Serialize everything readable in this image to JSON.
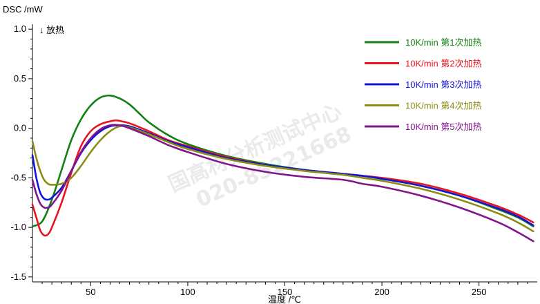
{
  "chart_data": {
    "type": "line",
    "title": "",
    "ylabel": "DSC /mW",
    "xlabel": "温度 /℃",
    "annotation": "↓ 放热",
    "xlim": [
      20,
      280
    ],
    "ylim": [
      -1.55,
      1.05
    ],
    "x_ticks": [
      50,
      100,
      150,
      200,
      250
    ],
    "y_ticks": [
      1.0,
      0.5,
      0.0,
      -0.5,
      -1.0,
      -1.5
    ],
    "y_tick_labels": [
      "1.0",
      "0.5",
      "0.0",
      "-0.5",
      "-1.0",
      "-1.5"
    ],
    "legend_position": "top-right",
    "watermark": [
      "国高材分析测试中心",
      "020-85221668"
    ],
    "series": [
      {
        "name": "10K/min 第1次加热",
        "color": "#128012",
        "points": [
          [
            20,
            -0.99
          ],
          [
            25,
            -0.94
          ],
          [
            30,
            -0.72
          ],
          [
            35,
            -0.42
          ],
          [
            40,
            -0.12
          ],
          [
            45,
            0.09
          ],
          [
            50,
            0.23
          ],
          [
            55,
            0.31
          ],
          [
            60,
            0.33
          ],
          [
            65,
            0.3
          ],
          [
            70,
            0.24
          ],
          [
            75,
            0.15
          ],
          [
            80,
            0.06
          ],
          [
            90,
            -0.07
          ],
          [
            100,
            -0.16
          ],
          [
            120,
            -0.28
          ],
          [
            140,
            -0.36
          ],
          [
            160,
            -0.42
          ],
          [
            180,
            -0.46
          ],
          [
            190,
            -0.48
          ],
          [
            200,
            -0.51
          ],
          [
            220,
            -0.58
          ],
          [
            240,
            -0.68
          ],
          [
            260,
            -0.82
          ],
          [
            270,
            -0.9
          ],
          [
            278,
            -0.99
          ]
        ]
      },
      {
        "name": "10K/min 第2次加热",
        "color": "#e8141e",
        "points": [
          [
            20,
            -0.77
          ],
          [
            22,
            -0.9
          ],
          [
            24,
            -1.03
          ],
          [
            26,
            -1.08
          ],
          [
            28,
            -1.07
          ],
          [
            30,
            -1.0
          ],
          [
            35,
            -0.75
          ],
          [
            40,
            -0.45
          ],
          [
            45,
            -0.18
          ],
          [
            50,
            -0.03
          ],
          [
            55,
            0.04
          ],
          [
            60,
            0.07
          ],
          [
            63,
            0.08
          ],
          [
            66,
            0.07
          ],
          [
            70,
            0.05
          ],
          [
            80,
            -0.03
          ],
          [
            90,
            -0.12
          ],
          [
            100,
            -0.18
          ],
          [
            120,
            -0.29
          ],
          [
            140,
            -0.37
          ],
          [
            160,
            -0.43
          ],
          [
            180,
            -0.46
          ],
          [
            190,
            -0.48
          ],
          [
            200,
            -0.5
          ],
          [
            220,
            -0.56
          ],
          [
            240,
            -0.66
          ],
          [
            260,
            -0.79
          ],
          [
            270,
            -0.87
          ],
          [
            278,
            -0.95
          ]
        ]
      },
      {
        "name": "10K/min 第3次加热",
        "color": "#1414d2",
        "points": [
          [
            20,
            -0.27
          ],
          [
            22,
            -0.5
          ],
          [
            24,
            -0.65
          ],
          [
            26,
            -0.71
          ],
          [
            28,
            -0.72
          ],
          [
            30,
            -0.7
          ],
          [
            35,
            -0.6
          ],
          [
            40,
            -0.43
          ],
          [
            45,
            -0.25
          ],
          [
            50,
            -0.12
          ],
          [
            55,
            -0.03
          ],
          [
            60,
            0.02
          ],
          [
            65,
            0.03
          ],
          [
            70,
            0.02
          ],
          [
            80,
            -0.05
          ],
          [
            90,
            -0.13
          ],
          [
            100,
            -0.19
          ],
          [
            120,
            -0.3
          ],
          [
            140,
            -0.37
          ],
          [
            160,
            -0.42
          ],
          [
            180,
            -0.46
          ],
          [
            190,
            -0.48
          ],
          [
            200,
            -0.51
          ],
          [
            220,
            -0.58
          ],
          [
            240,
            -0.68
          ],
          [
            260,
            -0.81
          ],
          [
            270,
            -0.89
          ],
          [
            278,
            -0.98
          ]
        ]
      },
      {
        "name": "10K/min 第4次加热",
        "color": "#8c8c14",
        "points": [
          [
            20,
            -0.13
          ],
          [
            22,
            -0.3
          ],
          [
            24,
            -0.43
          ],
          [
            26,
            -0.52
          ],
          [
            28,
            -0.56
          ],
          [
            30,
            -0.57
          ],
          [
            35,
            -0.56
          ],
          [
            40,
            -0.5
          ],
          [
            45,
            -0.38
          ],
          [
            50,
            -0.24
          ],
          [
            55,
            -0.12
          ],
          [
            60,
            -0.03
          ],
          [
            65,
            0.02
          ],
          [
            70,
            0.01
          ],
          [
            80,
            -0.06
          ],
          [
            90,
            -0.14
          ],
          [
            100,
            -0.21
          ],
          [
            120,
            -0.31
          ],
          [
            140,
            -0.38
          ],
          [
            160,
            -0.43
          ],
          [
            180,
            -0.47
          ],
          [
            190,
            -0.5
          ],
          [
            200,
            -0.53
          ],
          [
            220,
            -0.61
          ],
          [
            240,
            -0.72
          ],
          [
            260,
            -0.86
          ],
          [
            270,
            -0.95
          ],
          [
            278,
            -1.04
          ]
        ]
      },
      {
        "name": "10K/min 第5次加热",
        "color": "#82148c",
        "points": [
          [
            20,
            -0.52
          ],
          [
            22,
            -0.66
          ],
          [
            24,
            -0.76
          ],
          [
            26,
            -0.8
          ],
          [
            28,
            -0.8
          ],
          [
            30,
            -0.77
          ],
          [
            35,
            -0.63
          ],
          [
            40,
            -0.43
          ],
          [
            45,
            -0.24
          ],
          [
            50,
            -0.1
          ],
          [
            55,
            -0.01
          ],
          [
            60,
            0.03
          ],
          [
            65,
            0.03
          ],
          [
            70,
            0.0
          ],
          [
            80,
            -0.08
          ],
          [
            90,
            -0.17
          ],
          [
            100,
            -0.24
          ],
          [
            120,
            -0.36
          ],
          [
            140,
            -0.44
          ],
          [
            160,
            -0.49
          ],
          [
            180,
            -0.52
          ],
          [
            190,
            -0.56
          ],
          [
            200,
            -0.59
          ],
          [
            220,
            -0.68
          ],
          [
            240,
            -0.8
          ],
          [
            260,
            -0.95
          ],
          [
            270,
            -1.05
          ],
          [
            278,
            -1.14
          ]
        ]
      }
    ]
  }
}
